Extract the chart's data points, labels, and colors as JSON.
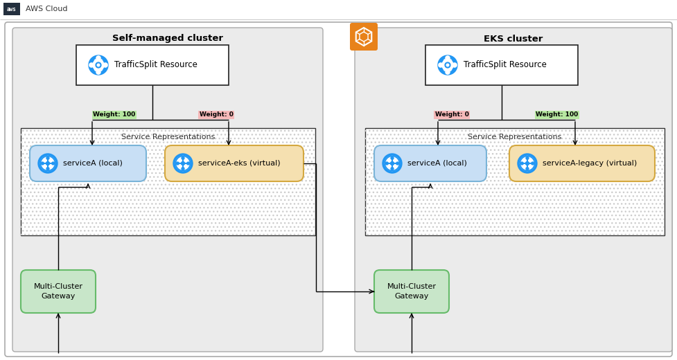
{
  "bg_color": "#ffffff",
  "header_bg": "#f8f8f8",
  "header_border": "#dddddd",
  "aws_logo_bg": "#232f3e",
  "aws_cloud_text": "AWS Cloud",
  "outer_box_edge": "#aaaaaa",
  "cluster_bg": "#ebebeb",
  "cluster_edge": "#aaaaaa",
  "left_cluster_label": "Self-managed cluster",
  "right_cluster_label": "EKS cluster",
  "traffic_split_label": "TrafficSplit Resource",
  "service_rep_label": "Service Representations",
  "left_service_local": "serviceA (local)",
  "left_service_virtual": "serviceA-eks (virtual)",
  "right_service_local": "serviceA (local)",
  "right_service_virtual": "serviceA-legacy (virtual)",
  "gateway_label": "Multi-Cluster\nGateway",
  "weight_100_color": "#b6e7a0",
  "weight_0_color": "#f5b8b8",
  "weight_100_text": "Weight: 100",
  "weight_0_text": "Weight: 0",
  "service_local_bg": "#c8dff5",
  "service_local_edge": "#7ab4d8",
  "service_virtual_bg": "#f5e0b0",
  "service_virtual_edge": "#d4a840",
  "gateway_bg": "#c8e6c9",
  "gateway_edge": "#66bb6a",
  "eks_icon_bg": "#e8821a",
  "icon_blue": "#2196F3",
  "figsize": [
    9.77,
    5.2
  ],
  "dpi": 100
}
